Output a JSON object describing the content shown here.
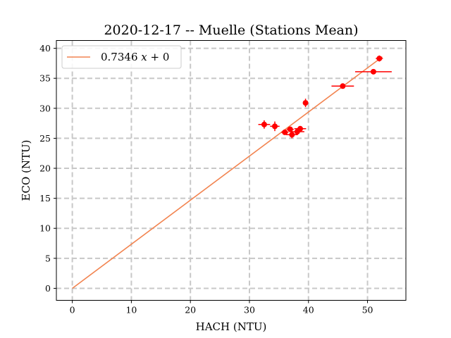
{
  "chart_data": {
    "type": "scatter",
    "title": "2020-12-17 -- Muelle (Stations Mean)",
    "xlabel": "HACH (NTU)",
    "ylabel": "ECO (NTU)",
    "xlim": [
      -2.7,
      56.5
    ],
    "ylim": [
      -2,
      41.3
    ],
    "xticks": [
      0,
      10,
      20,
      30,
      40,
      50
    ],
    "yticks": [
      0,
      5,
      10,
      15,
      20,
      25,
      30,
      35,
      40
    ],
    "grid": true,
    "legend_position": "top-left",
    "colors": {
      "points": "#ff0000",
      "fit_line": "#f28450",
      "grid": "#c8c8c8"
    },
    "fit_line": {
      "label_prefix": "0.7346 ",
      "label_var": "x",
      "label_suffix": " + 0",
      "slope": 0.7346,
      "intercept": 0,
      "x_range": [
        0,
        52.5
      ]
    },
    "series": [
      {
        "points": [
          {
            "x": 32.5,
            "y": 27.3,
            "xerr": 1.0,
            "yerr": 0.7
          },
          {
            "x": 34.3,
            "y": 27.0,
            "xerr": 0.8,
            "yerr": 0.8
          },
          {
            "x": 36.0,
            "y": 26.0,
            "xerr": 0.6,
            "yerr": 0.3
          },
          {
            "x": 36.9,
            "y": 26.5,
            "xerr": 0.6,
            "yerr": 0.4
          },
          {
            "x": 37.2,
            "y": 25.6,
            "xerr": 1.0,
            "yerr": 0.6
          },
          {
            "x": 38.1,
            "y": 26.1,
            "xerr": 1.2,
            "yerr": 0.3
          },
          {
            "x": 38.6,
            "y": 26.6,
            "xerr": 1.0,
            "yerr": 0.4
          },
          {
            "x": 39.5,
            "y": 30.9,
            "xerr": 0.3,
            "yerr": 0.7
          },
          {
            "x": 45.8,
            "y": 33.7,
            "xerr": 1.9,
            "yerr": 0.3
          },
          {
            "x": 51.0,
            "y": 36.1,
            "xerr": 3.1,
            "yerr": 0.4
          },
          {
            "x": 52.0,
            "y": 38.3,
            "xerr": 0.6,
            "yerr": 0.5
          }
        ]
      }
    ]
  }
}
